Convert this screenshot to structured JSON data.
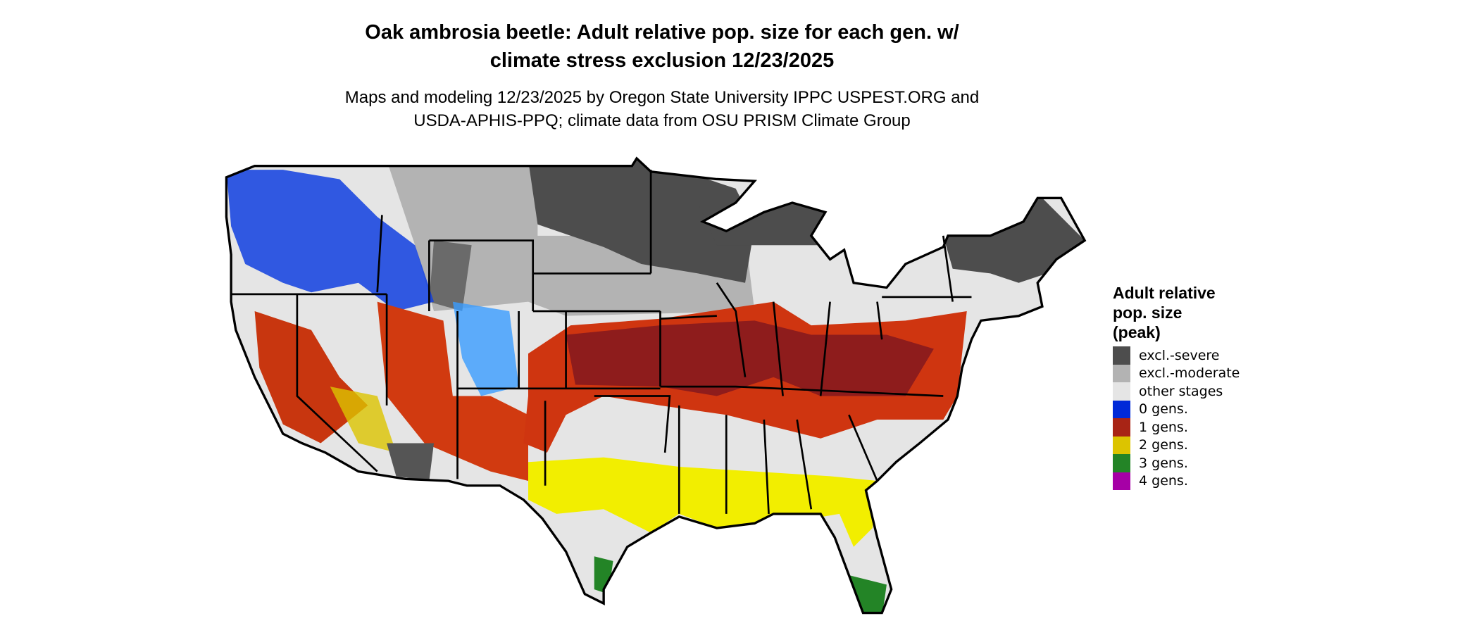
{
  "title": [
    "Oak ambrosia beetle: Adult relative pop. size for each gen. w/",
    "climate stress exclusion 12/23/2025"
  ],
  "subtitle": [
    "Maps and modeling 12/23/2025 by Oregon State University IPPC USPEST.ORG and",
    "USDA-APHIS-PPQ; climate data from OSU PRISM Climate Group"
  ],
  "legend": {
    "title": [
      "Adult relative",
      "pop. size",
      "(peak)"
    ],
    "items": [
      {
        "label": "excl.-severe",
        "color": "#4d4d4d"
      },
      {
        "label": "excl.-moderate",
        "color": "#b3b3b3"
      },
      {
        "label": "other stages",
        "color": "#e5e5e5"
      },
      {
        "label": "0 gens.",
        "color": "#0029d8"
      },
      {
        "label": "1 gens.",
        "color": "#a82415"
      },
      {
        "label": "2 gens.",
        "color": "#dcc400"
      },
      {
        "label": "3 gens.",
        "color": "#238426"
      },
      {
        "label": "4 gens.",
        "color": "#a600a6"
      }
    ]
  }
}
